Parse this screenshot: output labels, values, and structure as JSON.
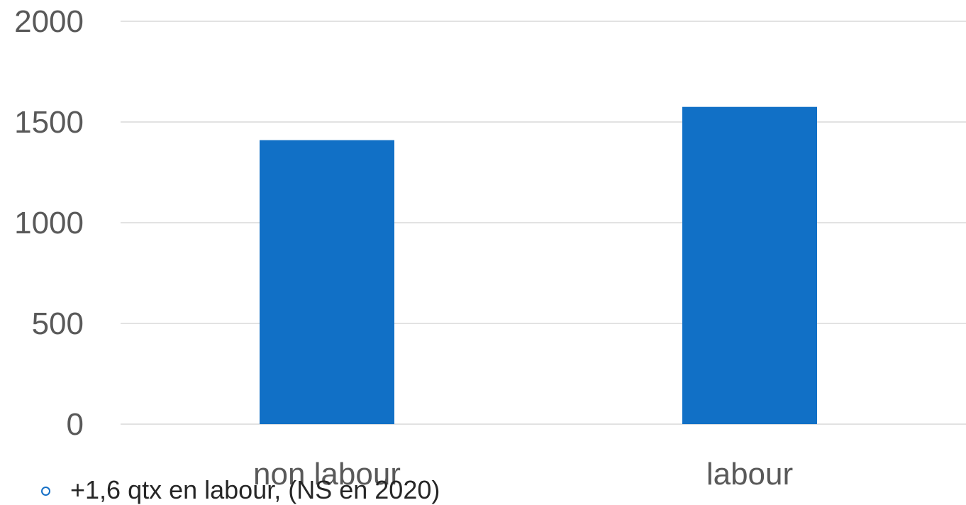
{
  "chart_data": {
    "type": "bar",
    "categories": [
      "non labour",
      "labour"
    ],
    "values": [
      1410,
      1575
    ],
    "ylim": [
      0,
      2000
    ],
    "yticks": [
      0,
      500,
      1000,
      1500,
      2000
    ],
    "grid": true,
    "bar_color": "#1170c6"
  },
  "note": {
    "text": "+1,6 qtx en labour, (NS en 2020)",
    "bullet_color": "#1670c6"
  }
}
